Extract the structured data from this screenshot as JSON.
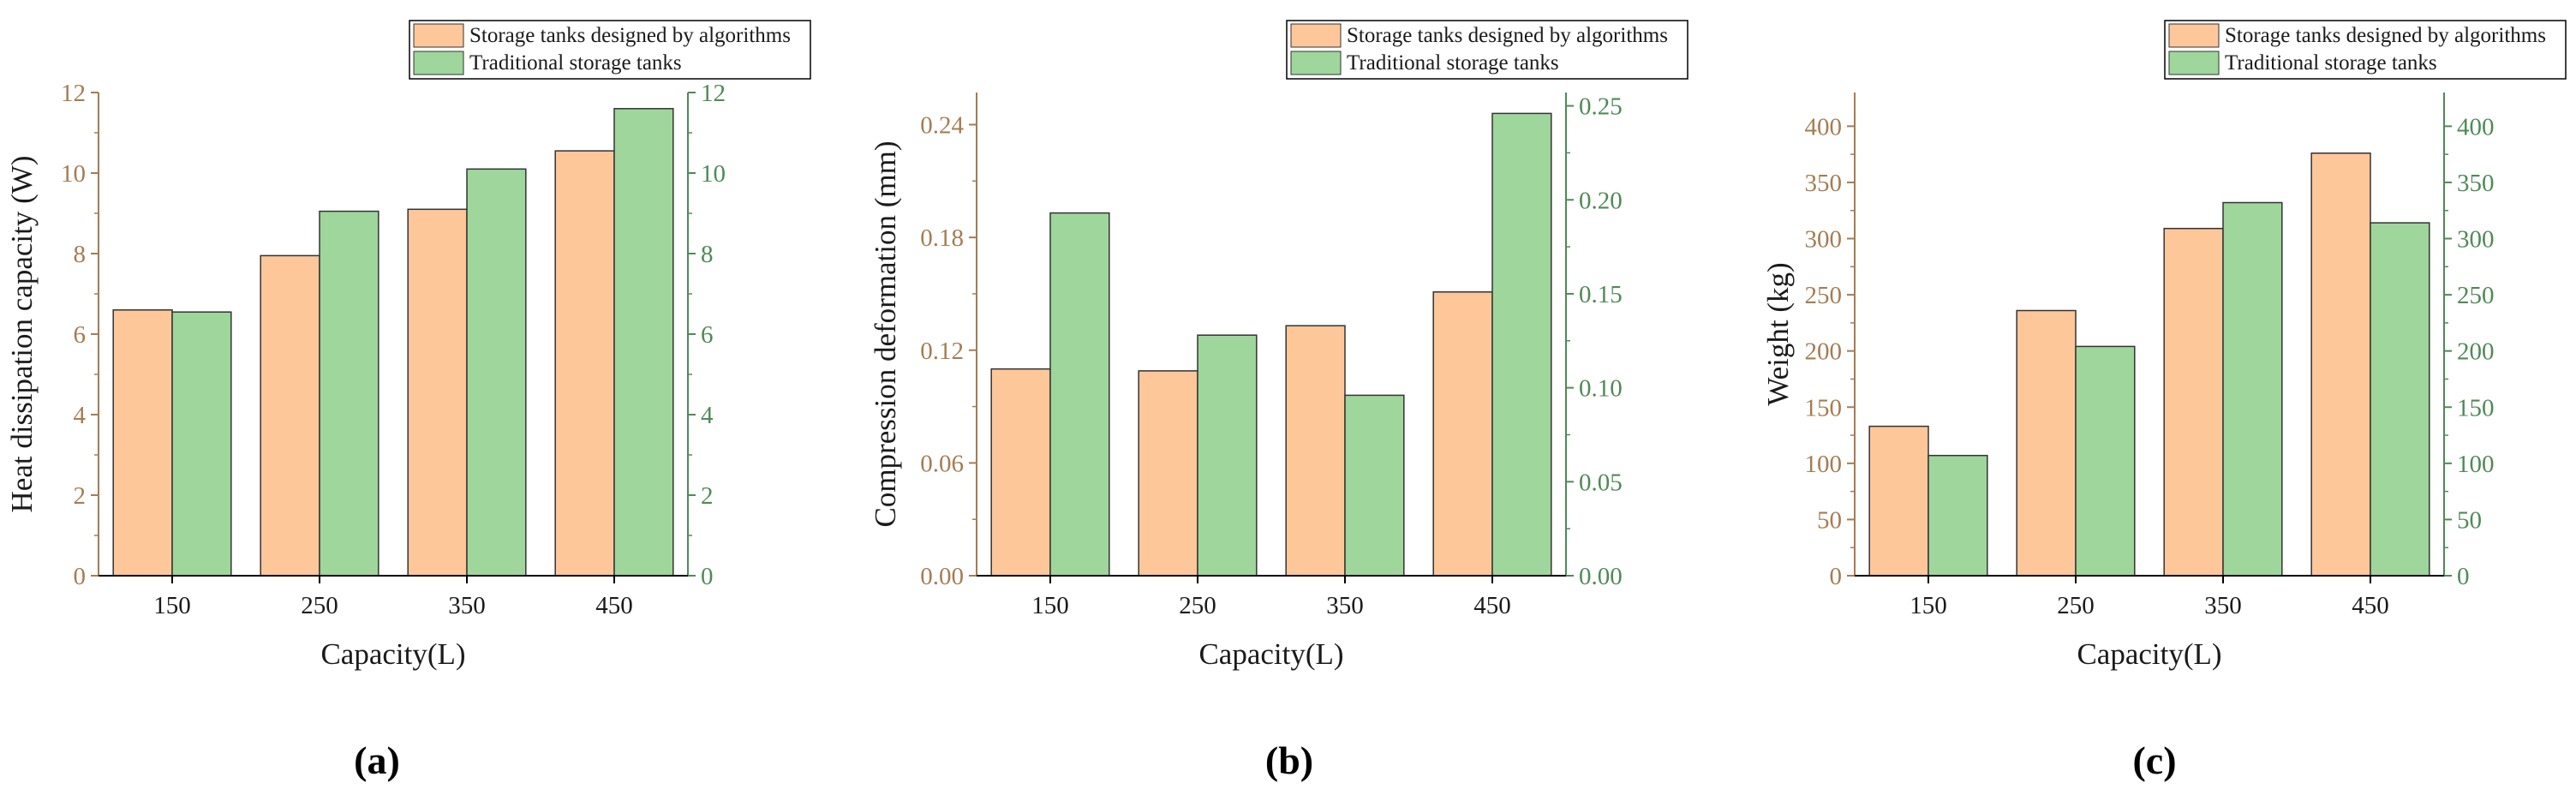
{
  "colors": {
    "series_a": "#fdc799",
    "series_b": "#9ed69b",
    "axis_left": "#a57c52",
    "axis_right": "#4f8a57",
    "bar_stroke": "#333333"
  },
  "chart_data": [
    {
      "type": "bar",
      "panel_label": "(a)",
      "categories": [
        "150",
        "250",
        "350",
        "450"
      ],
      "series": [
        {
          "name": "Storage tanks designed by algorithms",
          "axis": "left",
          "values": [
            6.6,
            7.95,
            9.1,
            10.55
          ]
        },
        {
          "name": "Traditional storage tanks",
          "axis": "right",
          "values": [
            6.55,
            9.05,
            10.1,
            11.6
          ]
        }
      ],
      "xlabel": "Capacity(L)",
      "ylabel": "Heat dissipation capacity (W)",
      "ylim": [
        0,
        12
      ],
      "yticks": [
        "0",
        "2",
        "4",
        "6",
        "8",
        "10",
        "12"
      ],
      "y2lim": [
        0,
        12
      ],
      "y2ticks": [
        "0",
        "2",
        "4",
        "6",
        "8",
        "10",
        "12"
      ],
      "legend_position": "top-right"
    },
    {
      "type": "bar",
      "panel_label": "(b)",
      "categories": [
        "150",
        "250",
        "350",
        "450"
      ],
      "series": [
        {
          "name": "Storage tanks designed by algorithms",
          "axis": "left",
          "values": [
            0.11,
            0.109,
            0.133,
            0.151
          ]
        },
        {
          "name": "Traditional storage tanks",
          "axis": "right",
          "values": [
            0.193,
            0.128,
            0.096,
            0.246
          ]
        }
      ],
      "xlabel": "Capacity(L)",
      "ylabel": "Compression deformation (mm)",
      "ylim": [
        0,
        0.2571
      ],
      "yticks": [
        "0.00",
        "0.06",
        "0.12",
        "0.18",
        "0.24"
      ],
      "y2lim": [
        0,
        0.2571
      ],
      "y2ticks": [
        "0.00",
        "0.05",
        "0.10",
        "0.15",
        "0.20",
        "0.25"
      ],
      "legend_position": "top-right"
    },
    {
      "type": "bar",
      "panel_label": "(c)",
      "categories": [
        "150",
        "250",
        "350",
        "450"
      ],
      "series": [
        {
          "name": "Storage tanks designed by algorithms",
          "axis": "left",
          "values": [
            133,
            236,
            309,
            376
          ]
        },
        {
          "name": "Traditional storage tanks",
          "axis": "right",
          "values": [
            107,
            204,
            332,
            314
          ]
        }
      ],
      "xlabel": "Capacity(L)",
      "ylabel": "Weight (kg)",
      "ylim": [
        0,
        430
      ],
      "yticks": [
        "0",
        "50",
        "100",
        "150",
        "200",
        "250",
        "300",
        "350",
        "400"
      ],
      "y2lim": [
        0,
        430
      ],
      "y2ticks": [
        "0",
        "50",
        "100",
        "150",
        "200",
        "250",
        "300",
        "350",
        "400"
      ],
      "legend_position": "top-right"
    }
  ]
}
